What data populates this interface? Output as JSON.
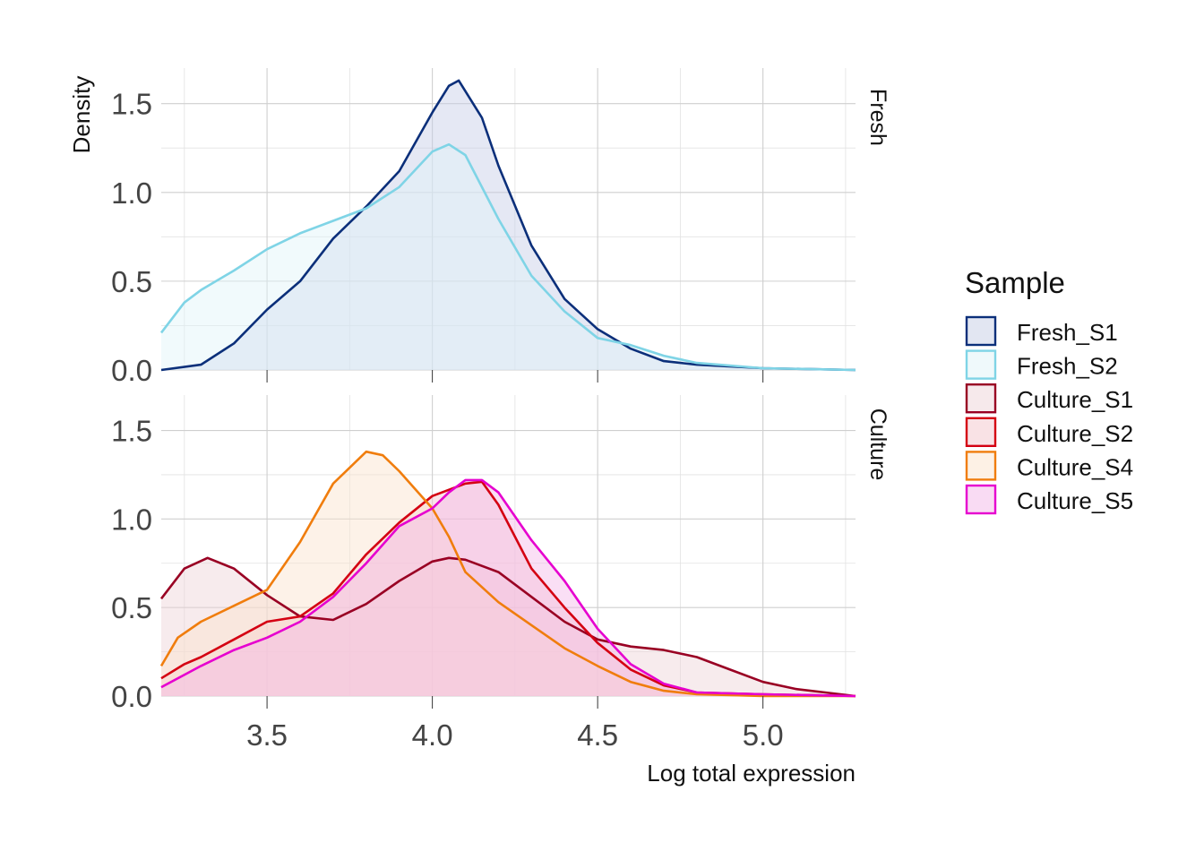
{
  "chart_data": {
    "type": "area",
    "xlabel": "Log total expression",
    "ylabel": "Density",
    "xlim": [
      3.18,
      5.28
    ],
    "ylim": [
      0,
      1.7
    ],
    "x_ticks": [
      3.5,
      4.0,
      4.5,
      5.0
    ],
    "x_tick_labels": [
      "3.5",
      "4.0",
      "4.5",
      "5.0"
    ],
    "y_ticks": [
      0.0,
      0.5,
      1.0,
      1.5
    ],
    "y_tick_labels": [
      "0.0",
      "0.5",
      "1.0",
      "1.5"
    ],
    "grid": true,
    "legend": {
      "title": "Sample",
      "position": "right",
      "entries": [
        "Fresh_S1",
        "Fresh_S2",
        "Culture_S1",
        "Culture_S2",
        "Culture_S4",
        "Culture_S5"
      ]
    },
    "panels": [
      {
        "strip": "Fresh",
        "series": [
          {
            "name": "Fresh_S1",
            "color": "#0b2f7a",
            "fill": "#c5cde6",
            "x": [
              3.18,
              3.3,
              3.4,
              3.5,
              3.6,
              3.7,
              3.8,
              3.9,
              4.0,
              4.05,
              4.08,
              4.15,
              4.2,
              4.3,
              4.4,
              4.5,
              4.6,
              4.7,
              4.8,
              5.0,
              5.28
            ],
            "y": [
              0.0,
              0.03,
              0.15,
              0.34,
              0.5,
              0.74,
              0.92,
              1.12,
              1.45,
              1.6,
              1.63,
              1.42,
              1.15,
              0.7,
              0.4,
              0.23,
              0.12,
              0.05,
              0.03,
              0.01,
              0.0
            ]
          },
          {
            "name": "Fresh_S2",
            "color": "#7fd4e6",
            "fill": "#dff3f8",
            "x": [
              3.18,
              3.25,
              3.3,
              3.4,
              3.5,
              3.6,
              3.7,
              3.8,
              3.9,
              4.0,
              4.05,
              4.1,
              4.2,
              4.3,
              4.4,
              4.5,
              4.6,
              4.7,
              4.8,
              5.0,
              5.28
            ],
            "y": [
              0.21,
              0.38,
              0.45,
              0.56,
              0.68,
              0.77,
              0.84,
              0.91,
              1.03,
              1.23,
              1.27,
              1.21,
              0.85,
              0.53,
              0.33,
              0.18,
              0.14,
              0.08,
              0.04,
              0.01,
              0.0
            ]
          }
        ]
      },
      {
        "strip": "Culture",
        "series": [
          {
            "name": "Culture_S1",
            "color": "#990023",
            "fill": "#eed3d8",
            "x": [
              3.18,
              3.25,
              3.32,
              3.4,
              3.5,
              3.6,
              3.7,
              3.8,
              3.9,
              4.0,
              4.05,
              4.1,
              4.2,
              4.3,
              4.4,
              4.5,
              4.6,
              4.7,
              4.8,
              4.9,
              5.0,
              5.1,
              5.28
            ],
            "y": [
              0.55,
              0.72,
              0.78,
              0.72,
              0.57,
              0.45,
              0.43,
              0.52,
              0.65,
              0.76,
              0.78,
              0.77,
              0.7,
              0.56,
              0.42,
              0.32,
              0.28,
              0.26,
              0.22,
              0.15,
              0.08,
              0.04,
              0.0
            ]
          },
          {
            "name": "Culture_S2",
            "color": "#d40012",
            "fill": "#f3c6cb",
            "x": [
              3.18,
              3.25,
              3.3,
              3.4,
              3.5,
              3.6,
              3.7,
              3.8,
              3.9,
              4.0,
              4.1,
              4.15,
              4.2,
              4.3,
              4.4,
              4.5,
              4.6,
              4.7,
              4.8,
              5.0,
              5.28
            ],
            "y": [
              0.1,
              0.18,
              0.22,
              0.32,
              0.42,
              0.45,
              0.58,
              0.8,
              0.98,
              1.13,
              1.2,
              1.21,
              1.08,
              0.72,
              0.5,
              0.3,
              0.15,
              0.06,
              0.02,
              0.01,
              0.0
            ]
          },
          {
            "name": "Culture_S4",
            "color": "#f07d0d",
            "fill": "#fbe3cb",
            "x": [
              3.18,
              3.23,
              3.3,
              3.4,
              3.5,
              3.6,
              3.7,
              3.8,
              3.85,
              3.9,
              4.0,
              4.05,
              4.1,
              4.2,
              4.3,
              4.4,
              4.5,
              4.6,
              4.7,
              4.8,
              5.0,
              5.28
            ],
            "y": [
              0.17,
              0.33,
              0.42,
              0.51,
              0.6,
              0.87,
              1.2,
              1.38,
              1.36,
              1.27,
              1.06,
              0.9,
              0.7,
              0.53,
              0.4,
              0.27,
              0.17,
              0.08,
              0.03,
              0.01,
              0.0,
              0.0
            ]
          },
          {
            "name": "Culture_S5",
            "color": "#e600cf",
            "fill": "#f4b8e8",
            "x": [
              3.18,
              3.3,
              3.4,
              3.5,
              3.6,
              3.7,
              3.8,
              3.9,
              4.0,
              4.05,
              4.1,
              4.15,
              4.2,
              4.3,
              4.4,
              4.5,
              4.6,
              4.7,
              4.8,
              5.0,
              5.28
            ],
            "y": [
              0.05,
              0.17,
              0.26,
              0.33,
              0.42,
              0.56,
              0.75,
              0.96,
              1.06,
              1.15,
              1.22,
              1.22,
              1.15,
              0.88,
              0.65,
              0.38,
              0.18,
              0.07,
              0.02,
              0.01,
              0.0
            ]
          }
        ]
      }
    ]
  }
}
